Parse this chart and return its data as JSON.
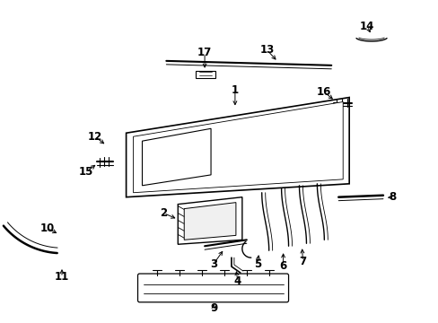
{
  "bg_color": "#ffffff",
  "line_color": "#000000",
  "fig_width": 4.89,
  "fig_height": 3.6,
  "dpi": 100,
  "label_fontsize": 8.5
}
